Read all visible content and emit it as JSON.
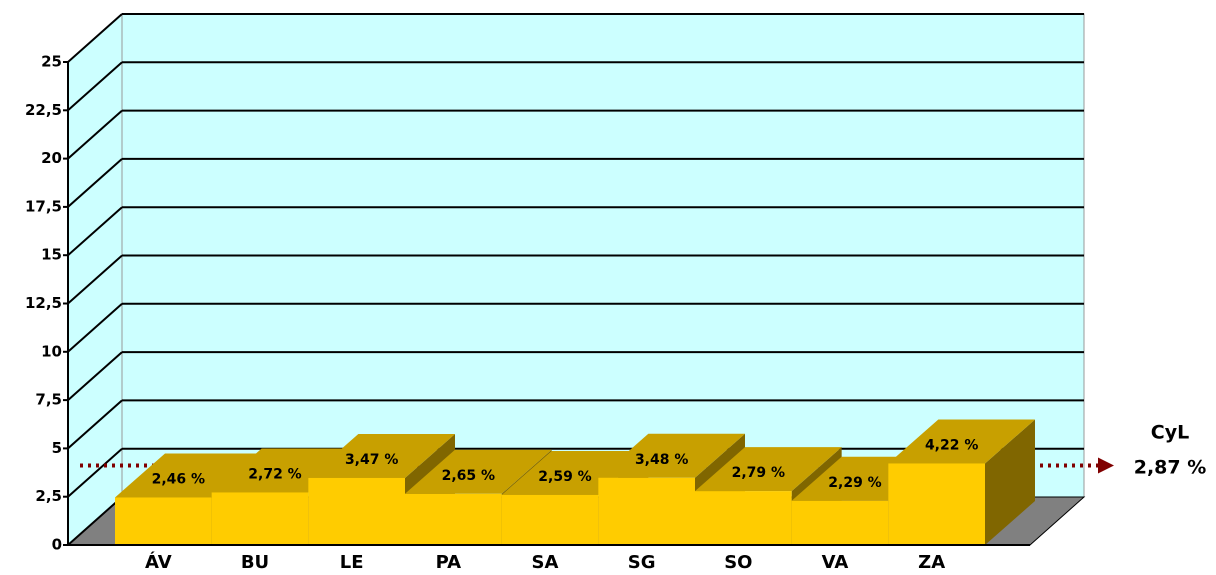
{
  "chart_data": {
    "type": "bar3d",
    "categories": [
      "ÁV",
      "BU",
      "LE",
      "PA",
      "SA",
      "SG",
      "SO",
      "VA",
      "ZA"
    ],
    "values": [
      2.46,
      2.72,
      3.47,
      2.65,
      2.59,
      3.48,
      2.79,
      2.29,
      4.22
    ],
    "value_labels": [
      "2,46 %",
      "2,72 %",
      "3,47 %",
      "2,65 %",
      "2,59 %",
      "3,48 %",
      "2,79 %",
      "2,29 %",
      "4,22 %"
    ],
    "color": "#ffcc00",
    "ylim": [
      0,
      25
    ],
    "yticks": [
      0,
      {
        "value": 2.5,
        "label": "2,5"
      },
      5,
      {
        "value": 7.5,
        "label": "7,5"
      },
      10,
      {
        "value": 12.5,
        "label": "12,5"
      },
      15,
      {
        "value": 17.5,
        "label": "17,5"
      },
      20,
      {
        "value": 22.5,
        "label": "22,5"
      },
      25
    ],
    "grid": true,
    "reference_line": {
      "name": "CyL",
      "value": 2.87,
      "value_label": "2,87 %",
      "color": "#800000"
    }
  }
}
